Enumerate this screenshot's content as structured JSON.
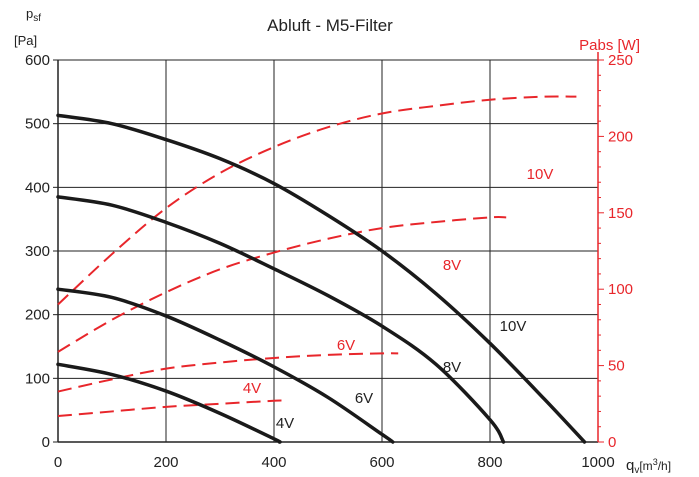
{
  "chart_data": {
    "type": "line",
    "title": "Abluft - M5-Filter",
    "left_axis": {
      "label_line1": "p",
      "label_sub": "sf",
      "label_line2": "[Pa]",
      "range": [
        0,
        600
      ],
      "ticks": [
        0,
        100,
        200,
        300,
        400,
        500,
        600
      ]
    },
    "right_axis": {
      "label": "Pabs [W]",
      "range": [
        0,
        250
      ],
      "ticks": [
        0,
        50,
        100,
        150,
        200,
        250
      ],
      "color": "#e8262b"
    },
    "x_axis": {
      "label_q": "q",
      "label_sub": "v",
      "label_unit_pre": "[m",
      "label_sup": "3",
      "label_unit_post": "/h]",
      "range": [
        0,
        1000
      ],
      "ticks": [
        0,
        200,
        400,
        600,
        800,
        1000
      ]
    },
    "grid": true,
    "pressure_series": [
      {
        "name": "4V",
        "color": "#1a1a1a",
        "points": [
          [
            0,
            122
          ],
          [
            100,
            106
          ],
          [
            200,
            80
          ],
          [
            300,
            45
          ],
          [
            400,
            5
          ],
          [
            410,
            0
          ]
        ]
      },
      {
        "name": "6V",
        "color": "#1a1a1a",
        "points": [
          [
            0,
            240
          ],
          [
            100,
            227
          ],
          [
            200,
            198
          ],
          [
            300,
            160
          ],
          [
            400,
            118
          ],
          [
            500,
            70
          ],
          [
            600,
            12
          ],
          [
            620,
            0
          ]
        ]
      },
      {
        "name": "8V",
        "color": "#1a1a1a",
        "points": [
          [
            0,
            385
          ],
          [
            100,
            372
          ],
          [
            200,
            345
          ],
          [
            300,
            312
          ],
          [
            400,
            272
          ],
          [
            500,
            230
          ],
          [
            600,
            182
          ],
          [
            700,
            122
          ],
          [
            800,
            35
          ],
          [
            825,
            0
          ]
        ]
      },
      {
        "name": "10V",
        "color": "#1a1a1a",
        "points": [
          [
            0,
            513
          ],
          [
            100,
            500
          ],
          [
            200,
            475
          ],
          [
            300,
            445
          ],
          [
            400,
            406
          ],
          [
            500,
            356
          ],
          [
            600,
            300
          ],
          [
            700,
            233
          ],
          [
            800,
            155
          ],
          [
            900,
            68
          ],
          [
            975,
            0
          ]
        ]
      }
    ],
    "power_series": [
      {
        "name": "4V",
        "color": "#e8262b",
        "points": [
          [
            0,
            17
          ],
          [
            100,
            20
          ],
          [
            200,
            23
          ],
          [
            300,
            25
          ],
          [
            400,
            27
          ],
          [
            420,
            27
          ]
        ]
      },
      {
        "name": "6V",
        "color": "#e8262b",
        "points": [
          [
            0,
            33
          ],
          [
            100,
            41
          ],
          [
            200,
            48
          ],
          [
            300,
            52
          ],
          [
            400,
            55
          ],
          [
            500,
            57
          ],
          [
            600,
            58
          ],
          [
            630,
            58
          ]
        ]
      },
      {
        "name": "8V",
        "color": "#e8262b",
        "points": [
          [
            0,
            59
          ],
          [
            100,
            80
          ],
          [
            200,
            98
          ],
          [
            300,
            113
          ],
          [
            400,
            124
          ],
          [
            500,
            133
          ],
          [
            600,
            140
          ],
          [
            700,
            144
          ],
          [
            800,
            147
          ],
          [
            830,
            147
          ]
        ]
      },
      {
        "name": "10V",
        "color": "#e8262b",
        "points": [
          [
            0,
            90
          ],
          [
            100,
            123
          ],
          [
            200,
            153
          ],
          [
            300,
            176
          ],
          [
            400,
            193
          ],
          [
            500,
            206
          ],
          [
            600,
            215
          ],
          [
            700,
            220
          ],
          [
            800,
            224
          ],
          [
            900,
            226
          ],
          [
            960,
            226
          ]
        ]
      }
    ]
  }
}
